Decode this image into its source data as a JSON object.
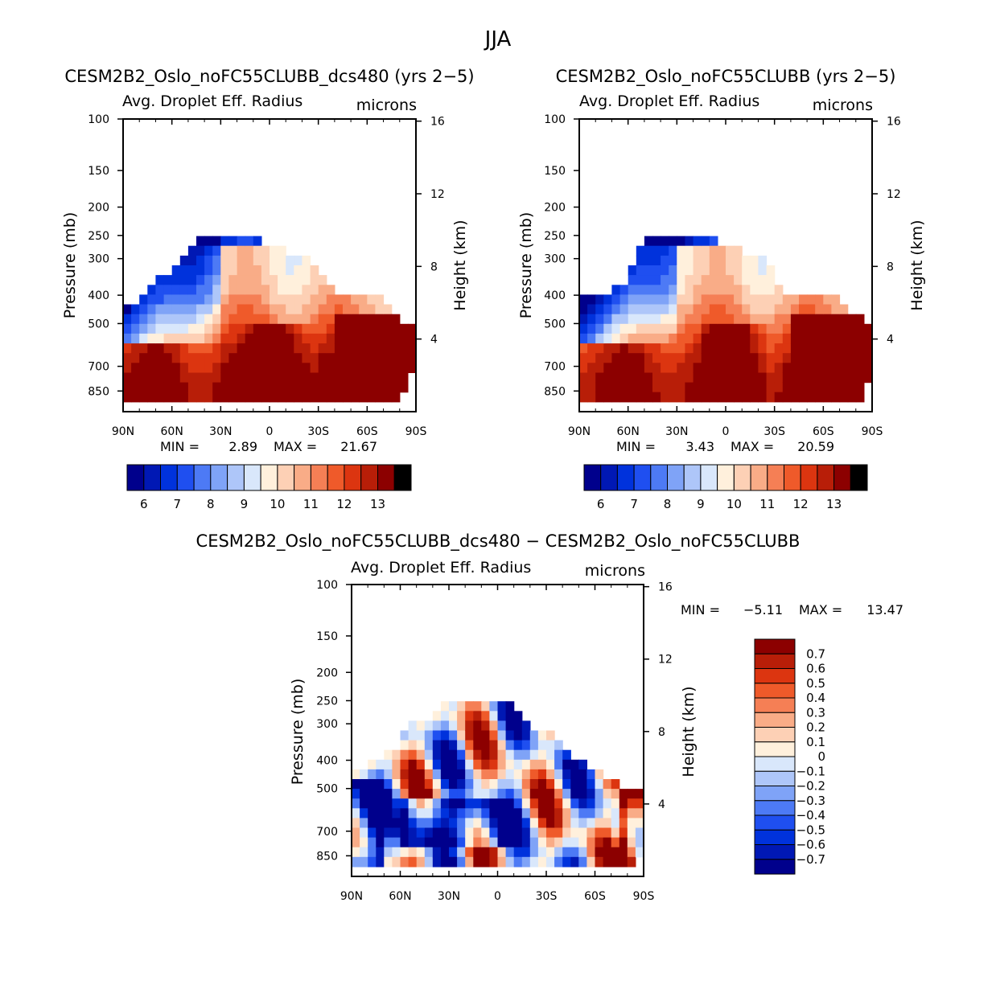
{
  "figure": {
    "title": "JJA",
    "panels": [
      {
        "case_title": "CESM2B2_Oslo_noFC55CLUBB_dcs480 (yrs 2−5)",
        "variable": "Avg. Droplet Eff. Radius",
        "units": "microns",
        "stats": {
          "min_label": "MIN =",
          "min": "2.89",
          "max_label": "MAX =",
          "max": "21.67"
        }
      },
      {
        "case_title": "CESM2B2_Oslo_noFC55CLUBB (yrs 2−5)",
        "variable": "Avg. Droplet Eff. Radius",
        "units": "microns",
        "stats": {
          "min_label": "MIN =",
          "min": "3.43",
          "max_label": "MAX =",
          "max": "20.59"
        }
      },
      {
        "case_title": "CESM2B2_Oslo_noFC55CLUBB_dcs480 − CESM2B2_Oslo_noFC55CLUBB",
        "variable": "Avg. Droplet Eff. Radius",
        "units": "microns",
        "stats": {
          "min_label": "MIN =",
          "min": "−5.11",
          "max_label": "MAX =",
          "max": "13.47"
        }
      }
    ]
  },
  "chart_data": [
    {
      "type": "heatmap",
      "title": "CESM2B2_Oslo_noFC55CLUBB_dcs480 (yrs 2−5)",
      "subtitle": "Avg. Droplet Eff. Radius",
      "units": "microns",
      "xlabel": "",
      "ylabel": "Pressure (mb)",
      "y2label": "Height (km)",
      "x_ticks": [
        "90N",
        "60N",
        "30N",
        "0",
        "30S",
        "60S",
        "90S"
      ],
      "x_values": [
        90,
        60,
        30,
        0,
        -30,
        -60,
        -90
      ],
      "y_ticks": [
        100,
        150,
        200,
        250,
        300,
        400,
        500,
        700,
        850
      ],
      "y2_ticks": [
        16,
        12,
        8,
        4
      ],
      "ylim": [
        1000,
        100
      ],
      "min": 2.89,
      "max": 21.67,
      "colorbar": {
        "levels": [
          5.5,
          6,
          6.5,
          7,
          7.5,
          8,
          8.5,
          9,
          9.5,
          10,
          10.5,
          11,
          11.5,
          12,
          12.5,
          13
        ],
        "labels": [
          "6",
          "7",
          "8",
          "9",
          "10",
          "11",
          "12",
          "13"
        ]
      }
    },
    {
      "type": "heatmap",
      "title": "CESM2B2_Oslo_noFC55CLUBB (yrs 2−5)",
      "subtitle": "Avg. Droplet Eff. Radius",
      "units": "microns",
      "xlabel": "",
      "ylabel": "Pressure (mb)",
      "y2label": "Height (km)",
      "x_ticks": [
        "90N",
        "60N",
        "30N",
        "0",
        "30S",
        "60S",
        "90S"
      ],
      "x_values": [
        90,
        60,
        30,
        0,
        -30,
        -60,
        -90
      ],
      "y_ticks": [
        100,
        150,
        200,
        250,
        300,
        400,
        500,
        700,
        850
      ],
      "y2_ticks": [
        16,
        12,
        8,
        4
      ],
      "ylim": [
        1000,
        100
      ],
      "min": 3.43,
      "max": 20.59,
      "colorbar": {
        "levels": [
          5.5,
          6,
          6.5,
          7,
          7.5,
          8,
          8.5,
          9,
          9.5,
          10,
          10.5,
          11,
          11.5,
          12,
          12.5,
          13
        ],
        "labels": [
          "6",
          "7",
          "8",
          "9",
          "10",
          "11",
          "12",
          "13"
        ]
      }
    },
    {
      "type": "heatmap",
      "title": "CESM2B2_Oslo_noFC55CLUBB_dcs480 − CESM2B2_Oslo_noFC55CLUBB",
      "subtitle": "Avg. Droplet Eff. Radius",
      "units": "microns",
      "xlabel": "",
      "ylabel": "Pressure (mb)",
      "y2label": "Height (km)",
      "x_ticks": [
        "90N",
        "60N",
        "30N",
        "0",
        "30S",
        "60S",
        "90S"
      ],
      "x_values": [
        90,
        60,
        30,
        0,
        -30,
        -60,
        -90
      ],
      "y_ticks": [
        100,
        150,
        200,
        250,
        300,
        400,
        500,
        700,
        850
      ],
      "y2_ticks": [
        16,
        12,
        8,
        4
      ],
      "ylim": [
        1000,
        100
      ],
      "min": -5.11,
      "max": 13.47,
      "colorbar": {
        "levels": [
          -0.7,
          -0.6,
          -0.5,
          -0.4,
          -0.3,
          -0.2,
          -0.1,
          0,
          0.1,
          0.2,
          0.3,
          0.4,
          0.5,
          0.6,
          0.7
        ],
        "labels": [
          "0.7",
          "0.6",
          "0.5",
          "0.4",
          "0.3",
          "0.2",
          "0.1",
          "0",
          "−0.1",
          "−0.2",
          "−0.3",
          "−0.4",
          "−0.5",
          "−0.6",
          "−0.7"
        ]
      }
    }
  ],
  "colors": {
    "scale16": [
      "#00008c",
      "#0018b4",
      "#0032dc",
      "#1f4ff0",
      "#4d7af5",
      "#7fa3f7",
      "#aec6f9",
      "#d9e7fb",
      "#fff0dc",
      "#fdd0b5",
      "#f9ac87",
      "#f57f55",
      "#ef5a2a",
      "#dc3510",
      "#b81e08",
      "#8c0000"
    ],
    "frame": "#000000"
  }
}
